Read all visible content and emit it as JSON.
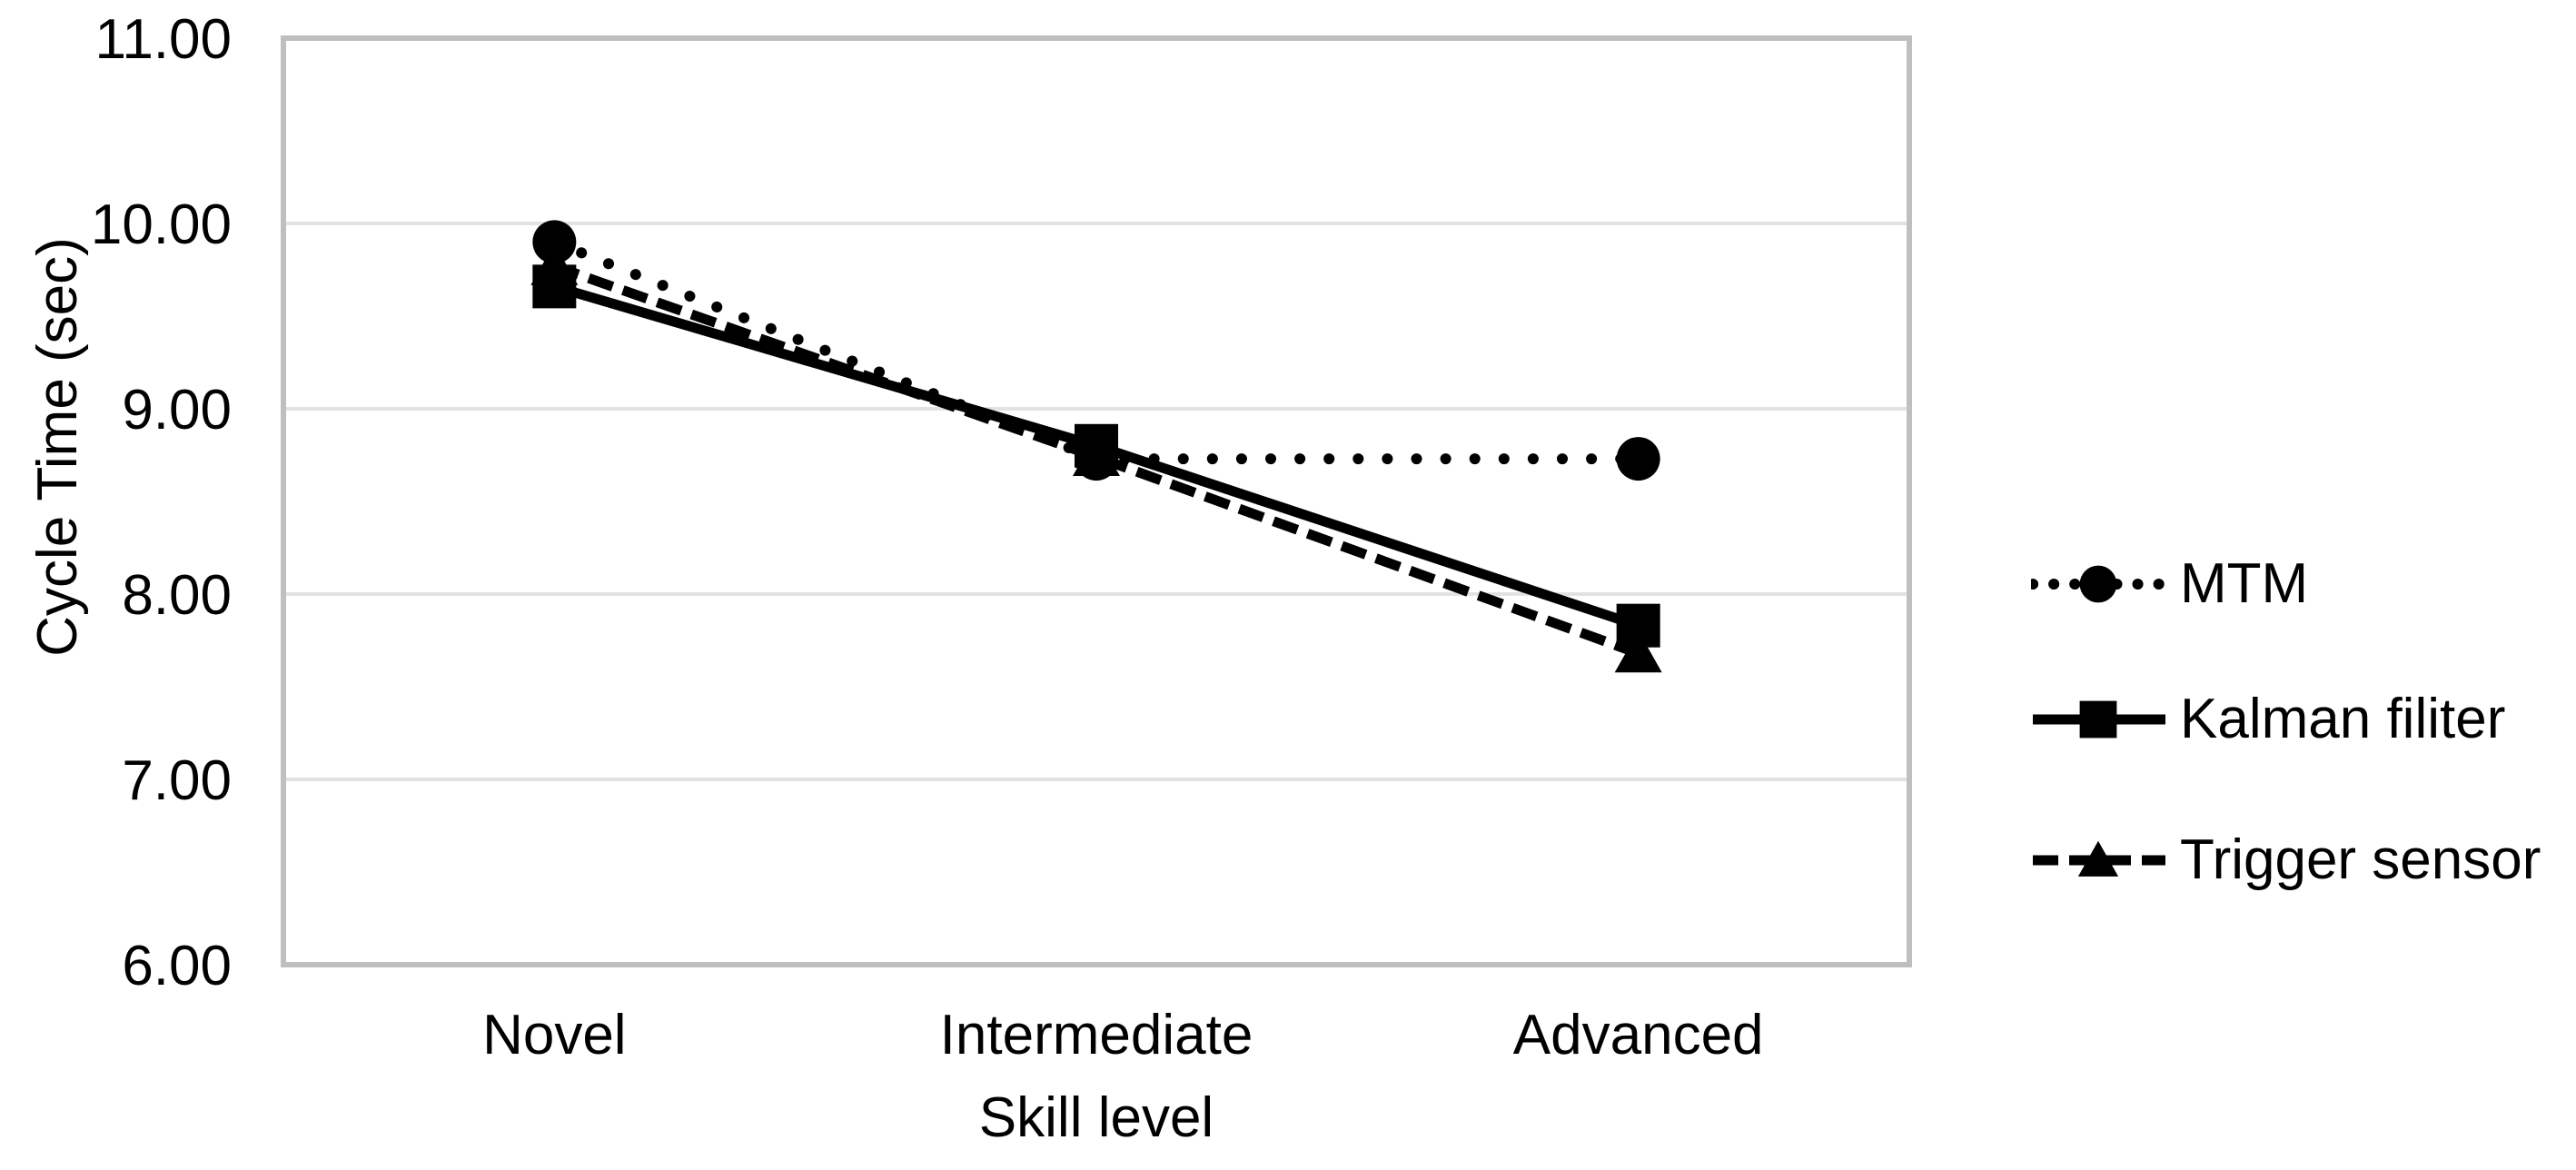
{
  "chart_data": {
    "type": "line",
    "title": "",
    "xlabel": "Skill level",
    "ylabel": "Cycle Time (sec)",
    "categories": [
      "Novel",
      "Intermediate",
      "Advanced"
    ],
    "series": [
      {
        "name": "MTM",
        "line_style": "dotted",
        "marker": "circle",
        "color": "#000000",
        "values": [
          9.9,
          8.73,
          8.73
        ]
      },
      {
        "name": "Kalman filiter",
        "line_style": "solid",
        "marker": "square",
        "color": "#000000",
        "values": [
          9.66,
          8.8,
          7.83
        ]
      },
      {
        "name": "Trigger sensor",
        "line_style": "dashed",
        "marker": "triangle",
        "color": "#000000",
        "values": [
          9.77,
          8.74,
          7.68
        ]
      }
    ],
    "ylim": [
      6,
      11
    ],
    "ytick_step": 1,
    "ytick_labels": [
      "6.00",
      "7.00",
      "8.00",
      "9.00",
      "10.00",
      "11.00"
    ],
    "grid": "horizontal",
    "legend_position": "right-middle",
    "axis_color": "#BFBFBF",
    "grid_color": "#E2E2E2",
    "text_color": "#000000",
    "background": "#FFFFFF"
  }
}
